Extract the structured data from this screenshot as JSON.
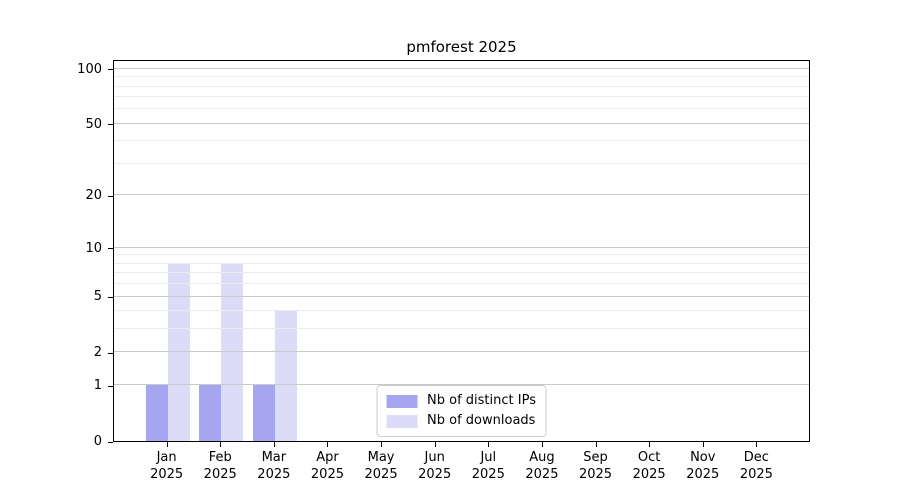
{
  "chart_data": {
    "type": "bar",
    "title": "pmforest 2025",
    "x_categories": [
      "Jan\n2025",
      "Feb\n2025",
      "Mar\n2025",
      "Apr\n2025",
      "May\n2025",
      "Jun\n2025",
      "Jul\n2025",
      "Aug\n2025",
      "Sep\n2025",
      "Oct\n2025",
      "Nov\n2025",
      "Dec\n2025"
    ],
    "series": [
      {
        "name": "Nb of distinct IPs",
        "color": "#a5a5f0",
        "values": [
          1,
          1,
          1,
          0,
          0,
          0,
          0,
          0,
          0,
          0,
          0,
          0
        ]
      },
      {
        "name": "Nb of downloads",
        "color": "#dcdcf8",
        "values": [
          8,
          8,
          4,
          0,
          0,
          0,
          0,
          0,
          0,
          0,
          0,
          0
        ]
      }
    ],
    "yscale": "log1p",
    "ylim": [
      0,
      113
    ],
    "yticks": [
      0,
      1,
      2,
      5,
      10,
      20,
      50,
      100
    ],
    "minor_gridlines": [
      3,
      4,
      6,
      7,
      8,
      9,
      30,
      40,
      60,
      70,
      80,
      90
    ],
    "grid": "on",
    "legend_position": "lower center",
    "colors": {
      "major_grid": "#c9c9c9",
      "minor_grid": "#ececec",
      "spine": "#000000",
      "background": "#ffffff"
    }
  }
}
